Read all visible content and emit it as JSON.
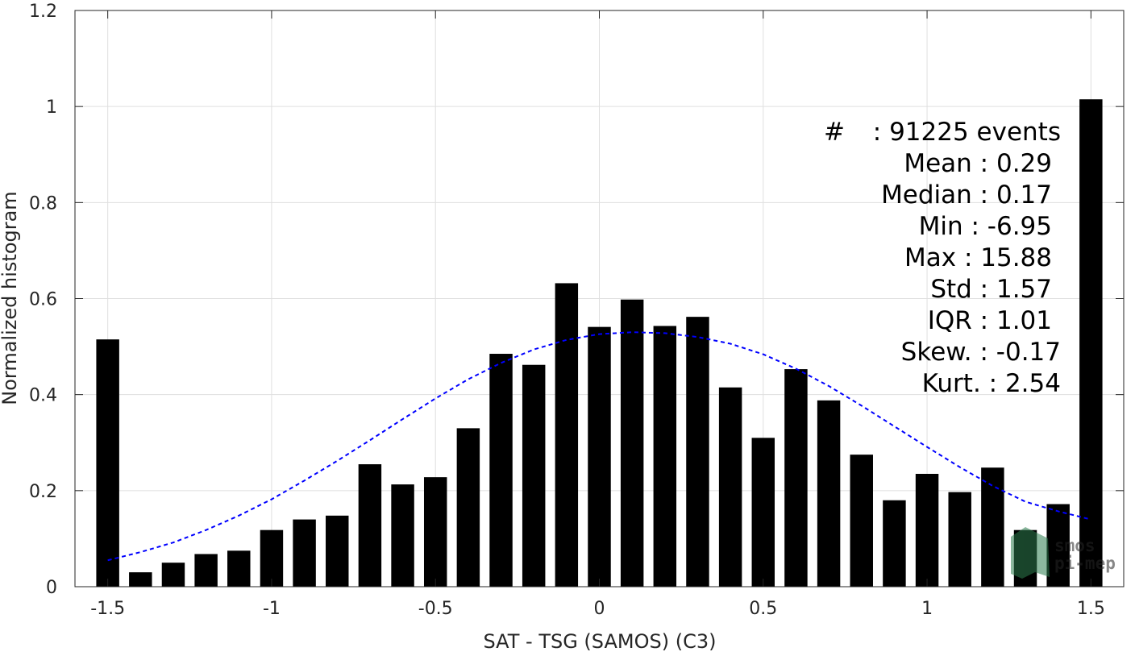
{
  "chart_data": {
    "type": "bar",
    "title": "",
    "xlabel": "SAT - TSG (SAMOS) (C3)",
    "ylabel": "Normalized histogram",
    "xlim": [
      -1.6,
      1.6
    ],
    "ylim": [
      0,
      1.2
    ],
    "grid": true,
    "x_ticks": [
      "-1.5",
      "-1",
      "-0.5",
      "0",
      "0.5",
      "1",
      "1.5"
    ],
    "x_tick_values": [
      -1.5,
      -1,
      -0.5,
      0,
      0.5,
      1,
      1.5
    ],
    "y_ticks": [
      "0",
      "0.2",
      "0.4",
      "0.6",
      "0.8",
      "1",
      "1.2"
    ],
    "y_tick_values": [
      0,
      0.2,
      0.4,
      0.6,
      0.8,
      1,
      1.2
    ],
    "bins": [
      -1.5,
      -1.4,
      -1.3,
      -1.2,
      -1.1,
      -1.0,
      -0.9,
      -0.8,
      -0.7,
      -0.6,
      -0.5,
      -0.4,
      -0.3,
      -0.2,
      -0.1,
      0.0,
      0.1,
      0.2,
      0.3,
      0.4,
      0.5,
      0.6,
      0.7,
      0.8,
      0.9,
      1.0,
      1.1,
      1.2,
      1.3,
      1.4,
      1.5
    ],
    "values": [
      0.515,
      0.03,
      0.05,
      0.068,
      0.075,
      0.118,
      0.14,
      0.148,
      0.255,
      0.213,
      0.228,
      0.33,
      0.485,
      0.462,
      0.632,
      0.541,
      0.598,
      0.543,
      0.562,
      0.415,
      0.31,
      0.453,
      0.388,
      0.275,
      0.18,
      0.235,
      0.197,
      0.248,
      0.118,
      0.172,
      1.015
    ],
    "bar_color": "#000000",
    "fit_curve": {
      "style": "dashed",
      "color": "#0000ff",
      "x": [
        -1.5,
        -1.4,
        -1.3,
        -1.2,
        -1.1,
        -1.0,
        -0.9,
        -0.8,
        -0.7,
        -0.6,
        -0.5,
        -0.4,
        -0.3,
        -0.2,
        -0.1,
        0.0,
        0.1,
        0.2,
        0.3,
        0.4,
        0.5,
        0.6,
        0.7,
        0.8,
        0.9,
        1.0,
        1.1,
        1.2,
        1.3,
        1.4,
        1.5
      ],
      "y": [
        0.055,
        0.072,
        0.092,
        0.118,
        0.148,
        0.182,
        0.221,
        0.262,
        0.305,
        0.349,
        0.392,
        0.432,
        0.466,
        0.494,
        0.514,
        0.526,
        0.53,
        0.528,
        0.52,
        0.506,
        0.484,
        0.454,
        0.418,
        0.377,
        0.334,
        0.291,
        0.249,
        0.21,
        0.177,
        0.157,
        0.14
      ]
    },
    "stats": [
      {
        "label": "#",
        "sep": " : ",
        "value": "91225 events"
      },
      {
        "label": "Mean",
        "sep": " : ",
        "value": "0.29"
      },
      {
        "label": "Median",
        "sep": " : ",
        "value": "0.17"
      },
      {
        "label": "Min",
        "sep": " : ",
        "value": "-6.95"
      },
      {
        "label": "Max",
        "sep": " : ",
        "value": "15.88"
      },
      {
        "label": "Std",
        "sep": " : ",
        "value": "1.57"
      },
      {
        "label": "IQR",
        "sep": " : ",
        "value": "1.01"
      },
      {
        "label": "Skew.",
        "sep": " : ",
        "value": "-0.17"
      },
      {
        "label": "Kurt.",
        "sep": " : ",
        "value": "2.54"
      }
    ],
    "logo": {
      "line1": "smos",
      "line2": "pi-mep",
      "color": "#2e7d4f"
    }
  }
}
